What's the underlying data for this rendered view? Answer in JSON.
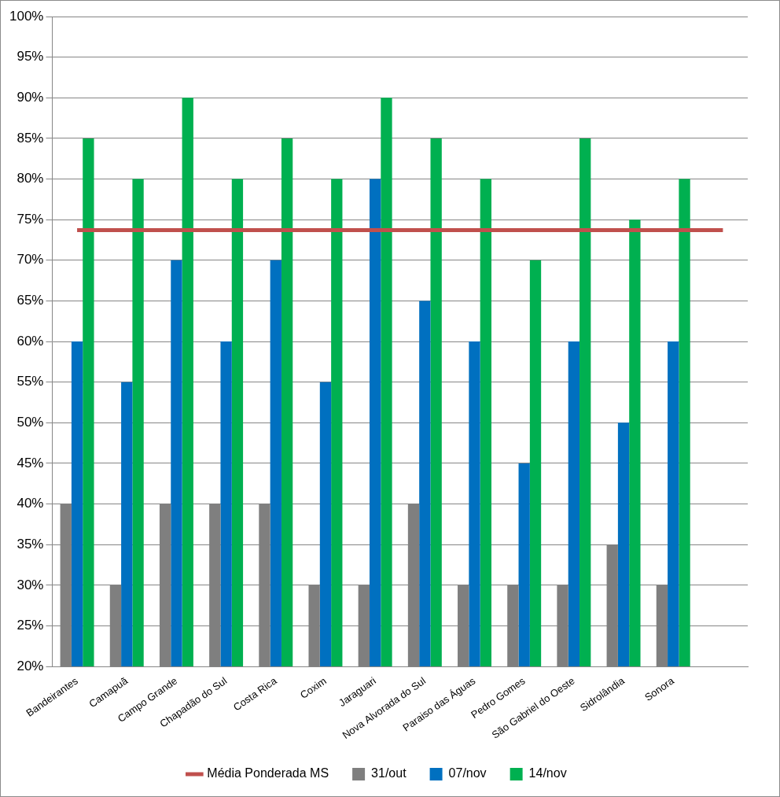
{
  "chart_data": {
    "type": "bar",
    "categories": [
      "Bandeirantes",
      "Camapuã",
      "Campo Grande",
      "Chapadão do Sul",
      "Costa Rica",
      "Coxim",
      "Jaraguari",
      "Nova Alvorada do Sul",
      "Paraiso das Águas",
      "Pedro Gomes",
      "São Gabriel do Oeste",
      "Sidrolândia",
      "Sonora",
      null
    ],
    "series": [
      {
        "name": "31/out",
        "type": "bar",
        "color": "#7f7f7f",
        "values": [
          40,
          30,
          40,
          40,
          40,
          30,
          30,
          40,
          30,
          30,
          30,
          35,
          30,
          null
        ]
      },
      {
        "name": "07/nov",
        "type": "bar",
        "color": "#0070c0",
        "values": [
          60,
          55,
          70,
          60,
          70,
          55,
          80,
          65,
          60,
          45,
          60,
          50,
          60,
          null
        ]
      },
      {
        "name": "14/nov",
        "type": "bar",
        "color": "#00b050",
        "values": [
          85,
          80,
          90,
          80,
          85,
          80,
          90,
          85,
          80,
          70,
          85,
          75,
          80,
          null
        ]
      },
      {
        "name": "Média Ponderada MS",
        "type": "line",
        "color": "#c0504d",
        "values": [
          73.7,
          73.7,
          73.7,
          73.7,
          73.7,
          73.7,
          73.7,
          73.7,
          73.7,
          73.7,
          73.7,
          73.7,
          73.7,
          73.7
        ]
      }
    ],
    "ylim": [
      20,
      100
    ],
    "yticks": [
      {
        "value": 20,
        "label": "20%"
      },
      {
        "value": 25,
        "label": "25%"
      },
      {
        "value": 30,
        "label": "30%"
      },
      {
        "value": 35,
        "label": "35%"
      },
      {
        "value": 40,
        "label": "40%"
      },
      {
        "value": 45,
        "label": "45%"
      },
      {
        "value": 50,
        "label": "50%"
      },
      {
        "value": 55,
        "label": "55%"
      },
      {
        "value": 60,
        "label": "60%"
      },
      {
        "value": 65,
        "label": "65%"
      },
      {
        "value": 70,
        "label": "70%"
      },
      {
        "value": 75,
        "label": "75%"
      },
      {
        "value": 80,
        "label": "80%"
      },
      {
        "value": 85,
        "label": "85%"
      },
      {
        "value": 90,
        "label": "90%"
      },
      {
        "value": 95,
        "label": "95%"
      },
      {
        "value": 100,
        "label": "100%"
      }
    ],
    "grid": true,
    "legend": "bottom"
  }
}
